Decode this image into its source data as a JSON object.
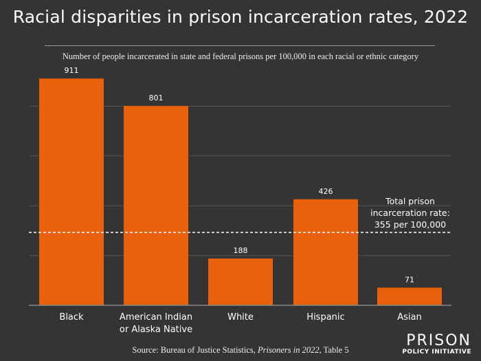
{
  "chart_data": {
    "type": "bar",
    "title": "Racial disparities in prison incarceration rates, 2022",
    "subtitle": "Number of people incarcerated in state and federal prisons per 100,000 in each racial or ethnic category",
    "categories": [
      [
        "Black"
      ],
      [
        "American Indian",
        "or Alaska Native"
      ],
      [
        "White"
      ],
      [
        "Hispanic"
      ],
      [
        "Asian"
      ]
    ],
    "values": [
      911,
      801,
      188,
      426,
      71
    ],
    "value_labels": [
      "911",
      "801",
      "188",
      "426",
      "71"
    ],
    "ylim": [
      0,
      1000
    ],
    "gridlines": [
      200,
      400,
      600,
      800
    ],
    "grid": true,
    "bar_color": "#e8600a",
    "reference_line": {
      "value": 355,
      "label": [
        "Total prison",
        "incarceration rate:",
        "355 per 100,000"
      ],
      "style": "dashed"
    },
    "source": {
      "prefix": "Source: Bureau of Justice Statistics, ",
      "italic": "Prisoners in 2022",
      "suffix": ", Table 5"
    }
  },
  "logo": {
    "line1": "PRISON",
    "line2": "POLICY INITIATIVE"
  }
}
